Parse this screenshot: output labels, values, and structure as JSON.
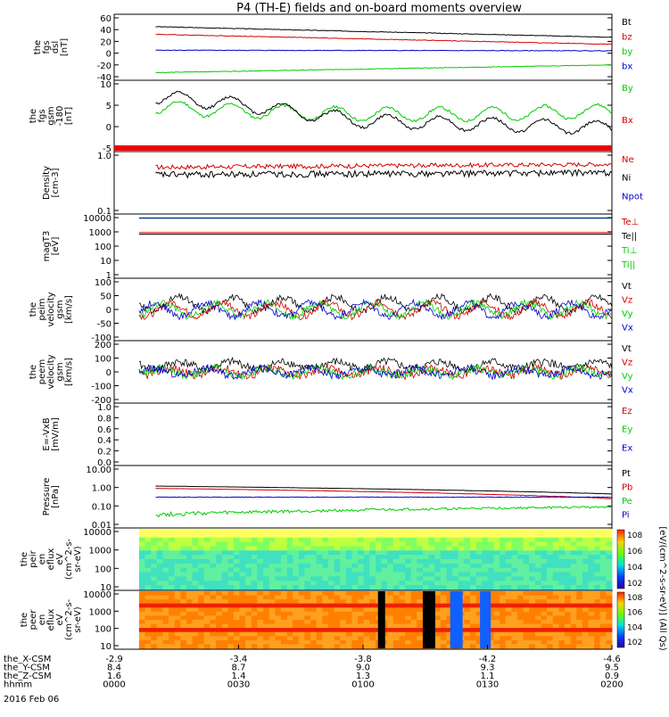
{
  "title": "P4 (TH-E) fields and on-board moments overview",
  "date_label": "2016 Feb 06",
  "colorbar_label": "[eV/(cm^2-s-sr-eV)] (All Qs)",
  "colors": {
    "black": "#000000",
    "red": "#d40000",
    "green": "#00cc00",
    "blue": "#0000cc"
  },
  "x_axis": {
    "rows": [
      {
        "label": "the_X-CSM",
        "values": [
          "-2.9",
          "-3.4",
          "-3.8",
          "-4.2",
          "-4.6"
        ]
      },
      {
        "label": "the_Y-CSM",
        "values": [
          "8.4",
          "8.7",
          "9.0",
          "9.3",
          "9.5"
        ]
      },
      {
        "label": "the_Z-CSM",
        "values": [
          "1.6",
          "1.4",
          "1.3",
          "1.1",
          "0.9"
        ]
      },
      {
        "label": "hhmm",
        "values": [
          "0000",
          "0030",
          "0100",
          "0130",
          "0200"
        ]
      }
    ]
  },
  "panels": [
    {
      "id": "fgs_dsl",
      "ylabel": [
        "the",
        "fgs",
        "dsl",
        "[nT]"
      ],
      "yticks": [
        "60",
        "40",
        "20",
        "0",
        "-20",
        "-40"
      ],
      "legend": [
        {
          "text": "Bt",
          "color": "#000000"
        },
        {
          "text": "bz",
          "color": "#d40000"
        },
        {
          "text": "by",
          "color": "#00cc00"
        },
        {
          "text": "bx",
          "color": "#0000cc"
        }
      ]
    },
    {
      "id": "fgs_gsm",
      "ylabel": [
        "the",
        "fgs",
        "gsm",
        "-180",
        "[nT]"
      ],
      "yticks": [
        "10",
        "5",
        "0",
        "-5"
      ],
      "legend": [
        {
          "text": "By",
          "color": "#00cc00"
        },
        {
          "text": "Bx",
          "color": "#d40000"
        }
      ]
    },
    {
      "id": "density",
      "ylabel": [
        "Density",
        "[cm-3]"
      ],
      "yticks": [
        "1.0",
        "0.1"
      ],
      "legend": [
        {
          "text": "Ne",
          "color": "#d40000"
        },
        {
          "text": "Ni",
          "color": "#000000"
        },
        {
          "text": "Npot",
          "color": "#0000cc"
        }
      ]
    },
    {
      "id": "temp",
      "ylabel": [
        "magT3",
        "[eV]"
      ],
      "yticks": [
        "10000",
        "1000",
        "100",
        "10",
        "1"
      ],
      "legend": [
        {
          "text": "Te⊥",
          "color": "#d40000"
        },
        {
          "text": "Te||",
          "color": "#000000"
        },
        {
          "text": "Ti⊥",
          "color": "#00cc00"
        },
        {
          "text": "Ti||",
          "color": "#00cc00"
        }
      ]
    },
    {
      "id": "peim_vel",
      "ylabel": [
        "the",
        "peim",
        "velocity",
        "gsm",
        "[km/s]"
      ],
      "yticks": [
        "100",
        "50",
        "0",
        "-50",
        "-100"
      ],
      "legend": [
        {
          "text": "Vt",
          "color": "#000000"
        },
        {
          "text": "Vz",
          "color": "#d40000"
        },
        {
          "text": "Vy",
          "color": "#00cc00"
        },
        {
          "text": "Vx",
          "color": "#0000cc"
        }
      ]
    },
    {
      "id": "peem_vel",
      "ylabel": [
        "the",
        "peem",
        "velocity",
        "gsm",
        "[km/s]"
      ],
      "yticks": [
        "200",
        "100",
        "0",
        "-100",
        "-200"
      ],
      "legend": [
        {
          "text": "Vt",
          "color": "#000000"
        },
        {
          "text": "Vz",
          "color": "#d40000"
        },
        {
          "text": "Vy",
          "color": "#00cc00"
        },
        {
          "text": "Vx",
          "color": "#0000cc"
        }
      ]
    },
    {
      "id": "efield",
      "ylabel": [
        "E=-VxB",
        "[mV/m]"
      ],
      "yticks": [
        "1.0",
        "0.8",
        "0.6",
        "0.4",
        "0.2",
        "0.0"
      ],
      "legend": [
        {
          "text": "Ez",
          "color": "#d40000"
        },
        {
          "text": "Ey",
          "color": "#00cc00"
        },
        {
          "text": "Ex",
          "color": "#0000cc"
        }
      ]
    },
    {
      "id": "pressure",
      "ylabel": [
        "Pressure",
        "[nPa]"
      ],
      "yticks": [
        "10.00",
        "1.00",
        "0.10",
        "0.01"
      ],
      "legend": [
        {
          "text": "Pt",
          "color": "#000000"
        },
        {
          "text": "Pb",
          "color": "#d40000"
        },
        {
          "text": "Pe",
          "color": "#00cc00"
        },
        {
          "text": "Pi",
          "color": "#0000cc"
        }
      ]
    },
    {
      "id": "peir_spec",
      "ylabel": [
        "the",
        "peir",
        "en",
        "eflux",
        "eV",
        "(cm^2-s-",
        "sr-eV)"
      ],
      "yticks": [
        "10000",
        "1000",
        "100",
        "10"
      ],
      "colorbar_ticks": [
        "10^8",
        "10^6",
        "10^4",
        "10^2"
      ]
    },
    {
      "id": "peer_spec",
      "ylabel": [
        "the",
        "peer",
        "en",
        "eflux",
        "eV",
        "(cm^2-s-",
        "sr-eV)"
      ],
      "yticks": [
        "10000",
        "1000",
        "100",
        "10"
      ],
      "colorbar_ticks": [
        "10^8",
        "10^6",
        "10^4",
        "10^2"
      ]
    }
  ],
  "chart_data": {
    "type": "line",
    "title": "P4 (TH-E) fields and on-board moments overview",
    "x_label": "hhmm",
    "x_ticks": [
      "0000",
      "0030",
      "0100",
      "0130",
      "0200"
    ],
    "x_range": [
      "0000",
      "0200"
    ],
    "series": [
      {
        "panel": "fgs_dsl",
        "name": "Bt",
        "x": [
          "0010",
          "0200"
        ],
        "values": [
          45,
          27
        ]
      },
      {
        "panel": "fgs_dsl",
        "name": "bz",
        "x": [
          "0010",
          "0200"
        ],
        "values": [
          32,
          15
        ]
      },
      {
        "panel": "fgs_dsl",
        "name": "by",
        "x": [
          "0010",
          "0200"
        ],
        "values": [
          5,
          4
        ]
      },
      {
        "panel": "fgs_dsl",
        "name": "bx",
        "x": [
          "0010",
          "0200"
        ],
        "values": [
          -33,
          -20
        ]
      },
      {
        "panel": "fgs_gsm",
        "name": "By",
        "x": [
          "0010",
          "0030",
          "0100",
          "0130",
          "0200"
        ],
        "values": [
          5,
          4,
          3,
          3,
          4
        ]
      },
      {
        "panel": "fgs_gsm",
        "name": "Bx",
        "x": [
          "0010",
          "0030",
          "0100",
          "0130",
          "0200"
        ],
        "values": [
          8,
          6,
          1,
          0,
          -1
        ]
      },
      {
        "panel": "density",
        "name": "Ne",
        "x": [
          "0010",
          "0200"
        ],
        "values": [
          0.7,
          0.8
        ]
      },
      {
        "panel": "density",
        "name": "Ni",
        "x": [
          "0010",
          "0200"
        ],
        "values": [
          0.5,
          0.55
        ]
      },
      {
        "panel": "pressure",
        "name": "Pt",
        "x": [
          "0010",
          "0200"
        ],
        "values": [
          1.2,
          0.45
        ]
      },
      {
        "panel": "pressure",
        "name": "Pb",
        "x": [
          "0010",
          "0200"
        ],
        "values": [
          0.9,
          0.25
        ]
      },
      {
        "panel": "pressure",
        "name": "Pe",
        "x": [
          "0010",
          "0200"
        ],
        "values": [
          0.035,
          0.09
        ]
      },
      {
        "panel": "pressure",
        "name": "Pi",
        "x": [
          "0010",
          "0200"
        ],
        "values": [
          0.3,
          0.3
        ]
      }
    ]
  }
}
